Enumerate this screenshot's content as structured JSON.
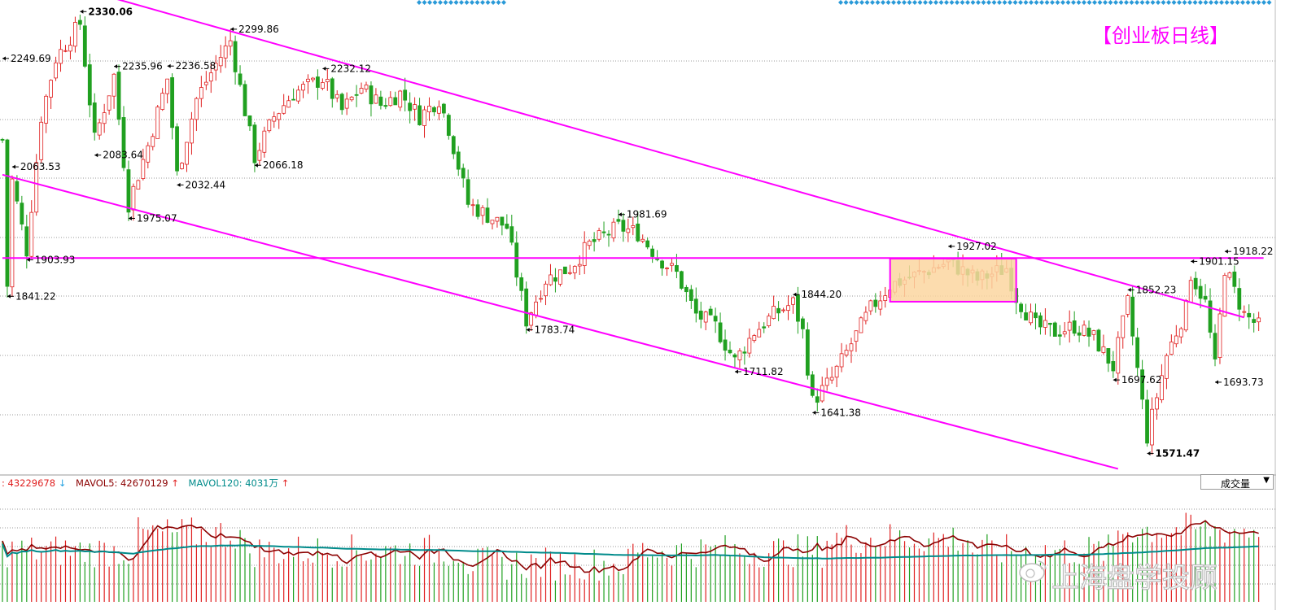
{
  "title": "【创业板日线】",
  "volume_legend": {
    "vol_value": ": 43229678",
    "vol_arrow": "↓",
    "mavol5_label": "MAVOL5: 42670129",
    "mavol5_arrow": "↑",
    "mavol120_label": "MAVOL120: 4031万",
    "mavol120_arrow": "↑"
  },
  "volume_selector": {
    "selected": "成交量",
    "arrow": "▼"
  },
  "watermark": "上海盘学投顾",
  "colors": {
    "up": "#e02020",
    "down": "#20a020",
    "line": "#ff00ff",
    "box_fill": "#fbd6a0",
    "mavol5": "#8b0000",
    "mavol120": "#008b8b"
  },
  "chart_data": {
    "type": "candlestick",
    "instrument": "创业板",
    "period": "日线",
    "ylim": [
      1540,
      2350
    ],
    "annotations": [
      {
        "label": "2330.06",
        "index": 16,
        "value": 2330.06,
        "type": "high",
        "bold": true
      },
      {
        "label": "2299.86",
        "index": 47,
        "value": 2299.86,
        "type": "high"
      },
      {
        "label": "2249.69",
        "index": 0,
        "value": 2249.69,
        "type": "high"
      },
      {
        "label": "2235.96",
        "index": 23,
        "value": 2235.96,
        "type": "high"
      },
      {
        "label": "2236.58",
        "index": 34,
        "value": 2236.58,
        "type": "high"
      },
      {
        "label": "2232.12",
        "index": 66,
        "value": 2232.12,
        "type": "high"
      },
      {
        "label": "2083.64",
        "index": 19,
        "value": 2083.64,
        "type": "low"
      },
      {
        "label": "2066.18",
        "index": 52,
        "value": 2066.18,
        "type": "low"
      },
      {
        "label": "2063.53",
        "index": 2,
        "value": 2063.53,
        "type": "high"
      },
      {
        "label": "2032.44",
        "index": 36,
        "value": 2032.44,
        "type": "low"
      },
      {
        "label": "1981.69",
        "index": 127,
        "value": 1981.69,
        "type": "high"
      },
      {
        "label": "1975.07",
        "index": 26,
        "value": 1975.07,
        "type": "low"
      },
      {
        "label": "1927.02",
        "index": 195,
        "value": 1927.02,
        "type": "high"
      },
      {
        "label": "1918.22",
        "index": 252,
        "value": 1918.22,
        "type": "high"
      },
      {
        "label": "1903.93",
        "index": 5,
        "value": 1903.93,
        "type": "low"
      },
      {
        "label": "1901.15",
        "index": 245,
        "value": 1901.15,
        "type": "high"
      },
      {
        "label": "1852.23",
        "index": 232,
        "value": 1852.23,
        "type": "high"
      },
      {
        "label": "1844.20",
        "index": 163,
        "value": 1844.2,
        "type": "high"
      },
      {
        "label": "1841.22",
        "index": 1,
        "value": 1841.22,
        "type": "low"
      },
      {
        "label": "1783.74",
        "index": 108,
        "value": 1783.74,
        "type": "low"
      },
      {
        "label": "1711.82",
        "index": 151,
        "value": 1711.82,
        "type": "low"
      },
      {
        "label": "1697.62",
        "index": 229,
        "value": 1697.62,
        "type": "low"
      },
      {
        "label": "1693.73",
        "index": 250,
        "value": 1693.73,
        "type": "low"
      },
      {
        "label": "1641.38",
        "index": 167,
        "value": 1641.38,
        "type": "low"
      },
      {
        "label": "1571.47",
        "index": 236,
        "value": 1571.47,
        "type": "low",
        "bold": true
      }
    ],
    "trendlines": [
      {
        "name": "upper channel",
        "from": {
          "index": 20,
          "value": 2360
        },
        "to": {
          "index": 256,
          "value": 1805
        }
      },
      {
        "name": "lower channel",
        "from": {
          "index": 0,
          "value": 2050
        },
        "to": {
          "index": 230,
          "value": 1545
        }
      },
      {
        "name": "horizontal resistance",
        "from": {
          "index": 0,
          "value": 1907
        },
        "to": {
          "index": 260,
          "value": 1907
        }
      }
    ],
    "box": {
      "from_index": 183,
      "to_index": 209,
      "top": 1906,
      "bottom": 1832
    },
    "volume": {
      "series": [
        "VOL",
        "MAVOL5",
        "MAVOL120"
      ],
      "last": {
        "VOL": 43229678,
        "MAVOL5": 42670129,
        "MAVOL120": "4031万"
      }
    }
  }
}
